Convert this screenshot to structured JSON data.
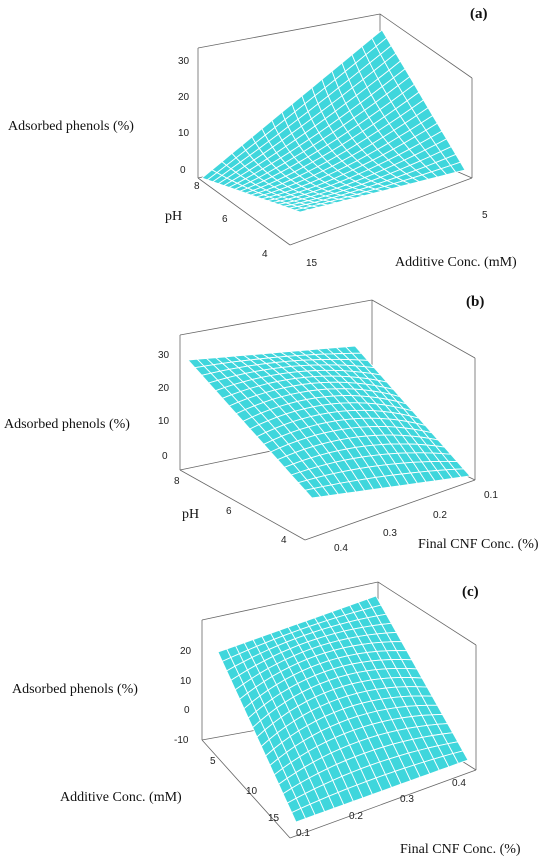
{
  "chart_data": [
    {
      "type": "surface",
      "panel_label": "(a)",
      "zlabel": "Adsorbed phenols (%)",
      "xlabel": "Additive Conc. (mM)",
      "ylabel": "pH",
      "z_ticks": [
        "30",
        "20",
        "10",
        "0"
      ],
      "y_ticks": [
        "8",
        "6",
        "4"
      ],
      "x_ticks": [
        "15",
        "5"
      ],
      "surface_color": "#3fd6dc",
      "grid": 18
    },
    {
      "type": "surface",
      "panel_label": "(b)",
      "zlabel": "Adsorbed phenols (%)",
      "xlabel": "Final CNF Conc. (%)",
      "ylabel": "pH",
      "z_ticks": [
        "30",
        "20",
        "10",
        "0"
      ],
      "y_ticks": [
        "8",
        "6",
        "4"
      ],
      "x_ticks": [
        "0.4",
        "0.3",
        "0.2",
        "0.1"
      ],
      "surface_color": "#3fd6dc",
      "grid": 18
    },
    {
      "type": "surface",
      "panel_label": "(c)",
      "zlabel": "Adsorbed phenols (%)",
      "xlabel": "Final CNF Conc. (%)",
      "ylabel": "Additive Conc. (mM)",
      "z_ticks": [
        "20",
        "10",
        "0",
        "-10"
      ],
      "y_ticks": [
        "5",
        "10",
        "15"
      ],
      "x_ticks": [
        "0.1",
        "0.2",
        "0.3",
        "0.4"
      ],
      "surface_color": "#3fd6dc",
      "grid": 18
    }
  ]
}
